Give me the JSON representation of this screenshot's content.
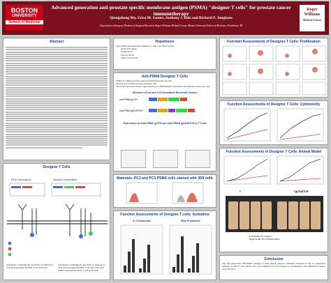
{
  "header": {
    "logo_left_line1": "BOSTON",
    "logo_left_line2": "UNIVERSITY",
    "logo_left_line3": "School of Medicine",
    "title": "Advanced generation anti-prostate specific membrane antigen (PSMA) \"designer T cells\" for prostate cancer immunotherapy",
    "authors": "Qiangzhong Ma, Erica M. Gomes, Anthony J. Bais and Richard P. Junghans",
    "affiliation": "Department of Surgery, Division of Surgical Research, Roger Williams Medical Center, Boston University School of Medicine, Providence, RI",
    "logo_right_line1": "Roger",
    "logo_right_line2": "Williams",
    "logo_right_line3": "Medical Center"
  },
  "sections": {
    "abstract": "Abstract",
    "designer_t_cells": "Designer T Cells",
    "hypothesis": "Hypothesis",
    "anti_psma": "Anti-PSMA Designer T Cells",
    "structure": "Structure of 1st and 2nd Generation Retroviral Vectors",
    "expression": "Expression of Anti-PSMA IgTCR and Anti-PSMA IgCD28TCR in T Cells",
    "materials": "Materials: PC3 and PC3-PSMA cells stained with 3D8 mAb",
    "activation": "Function Assessments of Designer T cells: Activation",
    "il2": "IL-2 Production",
    "ifn": "IFNγ Production",
    "proliferation": "Function Assessments of Designer T Cells: Proliferation",
    "cytotoxicity": "Function Assessments of Designer T Cells: Cytotoxicity",
    "animal": "Function Assessments of Designer T Cells: Animal Model",
    "conclusion": "Conclusion"
  },
  "hypothesis_text": {
    "intro": "Anti-PSMA 2nd generation designer T cells over-efficient than:",
    "b1": "Resist Ichoraines",
    "b2": "Proliferation",
    "b3": "Prevent AICD",
    "b4": "Tumor eradication",
    "anti1": "PSMA is a highly prostate restricted membrane glycoprotein",
    "anti2": "Expressed in normal prostate epithelial cells",
    "anti3": "Elevated in prostate cancers, especially in poor differentiated, metastatic and hormone refractory ones"
  },
  "conclusion_text": "The 2nd generation anti-PSMA designer T cells exhibit superior antitumor activities to the 1st generation designer T cells in vitro and in vivo, and combination of IL-2 improves proliferation and inhibition of tumor growth in vivo.",
  "animal_labels": {
    "t": "T",
    "tgcd28": "TgCD28TCR",
    "left": "Left Flank: PC3 Tumor",
    "right": "Right Flank: PC3-PSMA Tumor"
  },
  "legend_notes": {
    "a1": "Advantage: Combining the specificity of antibody to TCR and bypassing the MHC TCR restriction",
    "a2": "Advantage: Combining the specificity of antibody to TCR and bypassing the MHC TCR restriction, with CD28 costimulation and IL-2 self-production"
  },
  "vector_labels": {
    "first": "First Generation",
    "second": "Second Generation",
    "v1": "IgTCR",
    "v2": "IgCD28TCR",
    "v3": "Anti-PSMA IgTCR",
    "v4": "Anti-PSMA IgCD28TCR"
  },
  "colors": {
    "header_bg": "#7a0f1e",
    "section_title": "#1a3d8f",
    "logo_red": "#c4001a"
  }
}
